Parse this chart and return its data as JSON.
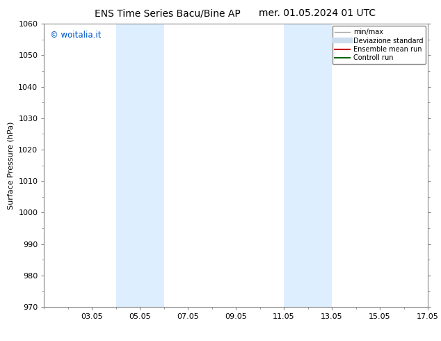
{
  "title_left": "ENS Time Series Bacu/Bine AP",
  "title_right": "mer. 01.05.2024 01 UTC",
  "ylabel": "Surface Pressure (hPa)",
  "ylim": [
    970,
    1060
  ],
  "yticks": [
    970,
    980,
    990,
    1000,
    1010,
    1020,
    1030,
    1040,
    1050,
    1060
  ],
  "xlim": [
    1,
    17
  ],
  "xtick_labels": [
    "03.05",
    "05.05",
    "07.05",
    "09.05",
    "11.05",
    "13.05",
    "15.05",
    "17.05"
  ],
  "xtick_positions": [
    3,
    5,
    7,
    9,
    11,
    13,
    15,
    17
  ],
  "shaded_bands": [
    {
      "x_start": 4,
      "x_end": 6
    },
    {
      "x_start": 11,
      "x_end": 13
    }
  ],
  "shaded_color": "#ddeeff",
  "watermark_text": "© woitalia.it",
  "watermark_color": "#0055cc",
  "legend_entries": [
    {
      "label": "min/max",
      "color": "#aaaaaa",
      "lw": 1.0
    },
    {
      "label": "Deviazione standard",
      "color": "#ccddee",
      "lw": 6
    },
    {
      "label": "Ensemble mean run",
      "color": "#cc0000",
      "lw": 1.5
    },
    {
      "label": "Controll run",
      "color": "#006600",
      "lw": 1.5
    }
  ],
  "title_fontsize": 10,
  "axis_fontsize": 8,
  "tick_fontsize": 8,
  "bg_color": "#ffffff",
  "spine_color": "#888888",
  "minor_tick_count": 1
}
